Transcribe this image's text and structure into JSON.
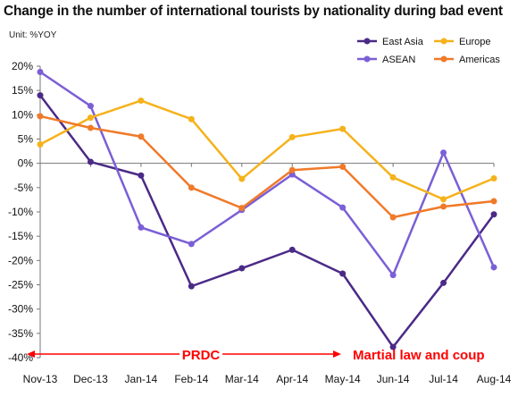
{
  "chart_data": {
    "type": "line",
    "title": "Change in the number of international tourists by nationality during bad event",
    "unit_label": "Unit: %YOY",
    "categories": [
      "Nov-13",
      "Dec-13",
      "Jan-14",
      "Feb-14",
      "Mar-14",
      "Apr-14",
      "May-14",
      "Jun-14",
      "Jul-14",
      "Aug-14"
    ],
    "ylim": [
      -40,
      20
    ],
    "yticks": [
      20,
      15,
      10,
      5,
      0,
      -5,
      -10,
      -15,
      -20,
      -25,
      -30,
      -35,
      -40
    ],
    "ytick_labels": [
      "20%",
      "15%",
      "10%",
      "5%",
      "0%",
      "-5%",
      "-10%",
      "-15%",
      "-20%",
      "-25%",
      "-30%",
      "-35%",
      "-40%"
    ],
    "series": [
      {
        "name": "East Asia",
        "color": "#4b2a87",
        "values": [
          14.0,
          0.3,
          -2.5,
          -25.3,
          -21.6,
          -17.8,
          -22.7,
          -37.8,
          -24.6,
          -10.5
        ]
      },
      {
        "name": "ASEAN",
        "color": "#7b5fd6",
        "values": [
          18.8,
          11.8,
          -13.2,
          -16.6,
          -9.6,
          -2.3,
          -9.1,
          -23.0,
          2.2,
          -21.4
        ]
      },
      {
        "name": "Europe",
        "color": "#f5b21b",
        "values": [
          3.9,
          9.4,
          12.9,
          9.1,
          -3.2,
          5.4,
          7.1,
          -2.9,
          -7.4,
          -3.1
        ]
      },
      {
        "name": "Americas",
        "color": "#f07a2a",
        "values": [
          9.7,
          7.3,
          5.5,
          -5.0,
          -9.2,
          -1.4,
          -0.7,
          -11.1,
          -8.9,
          -7.8
        ]
      }
    ],
    "legend_position": "top-right",
    "grid": false,
    "annotations": [
      {
        "text": "PRDC",
        "color": "#ff0000"
      },
      {
        "text": "Martial law and coup",
        "color": "#ff0000"
      }
    ]
  }
}
